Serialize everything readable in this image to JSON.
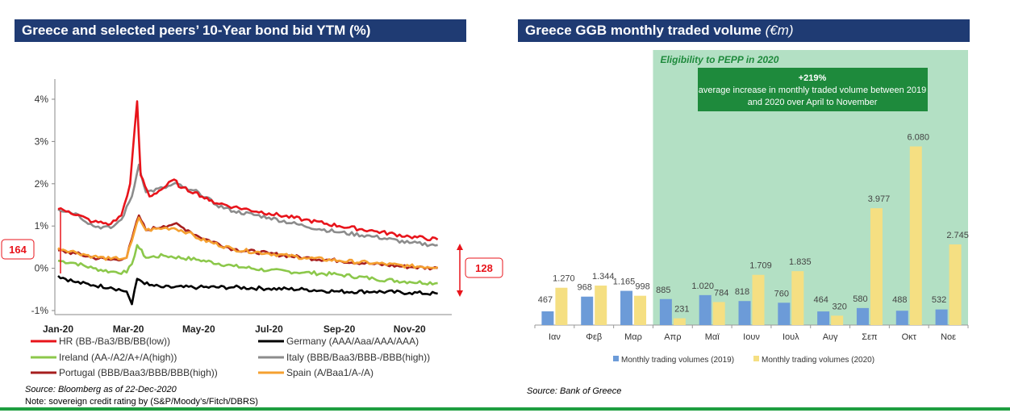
{
  "left": {
    "title": "Greece and selected peers’ 10-Year bond bid YTM (%)",
    "source": "Source: Bloomberg as of 22-Dec-2020",
    "note": "Note: sovereign credit rating by (S&P/Moody’s/Fitch/DBRS)"
  },
  "right": {
    "title_main": "Greece GGB monthly traded volume",
    "title_unit": "(€m)",
    "source": "Source: Bank of Greece"
  },
  "chart_data": [
    {
      "type": "line",
      "title": "Greece and selected peers’ 10-Year bond bid YTM (%)",
      "ylim": [
        -1,
        4
      ],
      "yticks": [
        "4%",
        "3%",
        "2%",
        "1%",
        "0%",
        "-1%"
      ],
      "xticks": [
        "Jan-20",
        "Mar-20",
        "May-20",
        "Jul-20",
        "Sep-20",
        "Nov-20"
      ],
      "grid": false,
      "annotations": {
        "left_spread": "164",
        "right_spread": "128"
      },
      "series": [
        {
          "name": "HR (BB-/Ba3/BB/BB(low))",
          "color": "#e8141b",
          "points": [
            [
              0,
              1.4
            ],
            [
              0.3,
              1.35
            ],
            [
              1,
              1.1
            ],
            [
              1.5,
              1.05
            ],
            [
              1.8,
              1.25
            ],
            [
              2.05,
              2.0
            ],
            [
              2.25,
              3.95
            ],
            [
              2.35,
              2.2
            ],
            [
              2.6,
              1.7
            ],
            [
              3,
              1.9
            ],
            [
              3.3,
              2.1
            ],
            [
              3.5,
              1.9
            ],
            [
              3.9,
              1.8
            ],
            [
              4.3,
              1.6
            ],
            [
              5,
              1.45
            ],
            [
              6,
              1.3
            ],
            [
              7,
              1.15
            ],
            [
              8,
              1.0
            ],
            [
              9,
              0.88
            ],
            [
              10,
              0.75
            ],
            [
              10.8,
              0.68
            ]
          ]
        },
        {
          "name": "Germany (AAA/Aaa/AAA/AAA)",
          "color": "#000000",
          "points": [
            [
              0,
              -0.18
            ],
            [
              0.5,
              -0.33
            ],
            [
              1,
              -0.4
            ],
            [
              1.5,
              -0.45
            ],
            [
              1.95,
              -0.55
            ],
            [
              2.1,
              -0.85
            ],
            [
              2.25,
              -0.25
            ],
            [
              2.6,
              -0.4
            ],
            [
              3,
              -0.45
            ],
            [
              4,
              -0.45
            ],
            [
              5,
              -0.45
            ],
            [
              6,
              -0.48
            ],
            [
              7,
              -0.5
            ],
            [
              8,
              -0.55
            ],
            [
              9,
              -0.55
            ],
            [
              10,
              -0.58
            ],
            [
              10.8,
              -0.6
            ]
          ]
        },
        {
          "name": "Ireland (AA-/A2/A+/A(high))",
          "color": "#8cc84b",
          "points": [
            [
              0,
              0.18
            ],
            [
              0.5,
              0.12
            ],
            [
              1,
              0.0
            ],
            [
              1.5,
              -0.08
            ],
            [
              1.95,
              -0.1
            ],
            [
              2.1,
              0.1
            ],
            [
              2.25,
              0.55
            ],
            [
              2.5,
              0.25
            ],
            [
              3,
              0.3
            ],
            [
              4,
              0.2
            ],
            [
              5,
              0.05
            ],
            [
              6,
              -0.05
            ],
            [
              7,
              -0.1
            ],
            [
              8,
              -0.15
            ],
            [
              9,
              -0.25
            ],
            [
              10,
              -0.32
            ],
            [
              10.8,
              -0.35
            ]
          ]
        },
        {
          "name": "Italy (BBB/Baa3/BBB-/BBB(high))",
          "color": "#8c8c8c",
          "points": [
            [
              0,
              1.4
            ],
            [
              0.5,
              1.3
            ],
            [
              1,
              1.0
            ],
            [
              1.5,
              0.95
            ],
            [
              1.8,
              1.15
            ],
            [
              2.1,
              1.7
            ],
            [
              2.3,
              2.45
            ],
            [
              2.5,
              1.8
            ],
            [
              3,
              1.9
            ],
            [
              3.4,
              2.0
            ],
            [
              3.7,
              1.85
            ],
            [
              4,
              1.8
            ],
            [
              4.5,
              1.5
            ],
            [
              5,
              1.35
            ],
            [
              6,
              1.2
            ],
            [
              7,
              1.0
            ],
            [
              8,
              0.85
            ],
            [
              9,
              0.75
            ],
            [
              10,
              0.6
            ],
            [
              10.8,
              0.55
            ]
          ]
        },
        {
          "name": "Portugal (BBB/Baa3/BBB/BBB(high))",
          "color": "#a61e1e",
          "points": [
            [
              0,
              0.42
            ],
            [
              0.5,
              0.35
            ],
            [
              1,
              0.25
            ],
            [
              1.5,
              0.2
            ],
            [
              1.95,
              0.25
            ],
            [
              2.1,
              0.7
            ],
            [
              2.3,
              1.25
            ],
            [
              2.5,
              0.9
            ],
            [
              3,
              1.0
            ],
            [
              3.3,
              1.05
            ],
            [
              3.7,
              0.9
            ],
            [
              4,
              0.75
            ],
            [
              5,
              0.45
            ],
            [
              6,
              0.35
            ],
            [
              7,
              0.25
            ],
            [
              8,
              0.18
            ],
            [
              9,
              0.1
            ],
            [
              10,
              0.03
            ],
            [
              10.8,
              0.0
            ]
          ]
        },
        {
          "name": "Spain (A/Baa1/A-/A)",
          "color": "#f5a030",
          "points": [
            [
              0,
              0.48
            ],
            [
              0.5,
              0.38
            ],
            [
              1,
              0.28
            ],
            [
              1.5,
              0.22
            ],
            [
              1.95,
              0.25
            ],
            [
              2.1,
              0.65
            ],
            [
              2.3,
              1.2
            ],
            [
              2.5,
              0.9
            ],
            [
              3,
              0.95
            ],
            [
              3.3,
              0.95
            ],
            [
              3.7,
              0.85
            ],
            [
              4,
              0.7
            ],
            [
              5,
              0.45
            ],
            [
              6,
              0.35
            ],
            [
              7,
              0.25
            ],
            [
              8,
              0.18
            ],
            [
              9,
              0.12
            ],
            [
              10,
              0.05
            ],
            [
              10.8,
              0.03
            ]
          ]
        }
      ]
    },
    {
      "type": "bar",
      "title": "Greece GGB monthly traded volume (€m)",
      "categories": [
        "Ιαν",
        "Φεβ",
        "Μαρ",
        "Απρ",
        "Μαϊ",
        "Ιουν",
        "Ιουλ",
        "Αυγ",
        "Σεπ",
        "Οκτ",
        "Νοε"
      ],
      "ylim": [
        0,
        7000
      ],
      "series": [
        {
          "name": "Monthly trading volumes (2019)",
          "color": "#6c9bd8",
          "values": [
            467,
            968,
            1165,
            885,
            1020,
            818,
            760,
            464,
            580,
            488,
            532
          ],
          "labels": [
            "467",
            "968",
            "1.165",
            "885",
            "1.020",
            "818",
            "760",
            "464",
            "580",
            "488",
            "532"
          ]
        },
        {
          "name": "Monthly trading volumes (2020)",
          "color": "#f5df82",
          "values": [
            1270,
            1344,
            998,
            231,
            784,
            1709,
            1835,
            320,
            3977,
            6080,
            2745
          ],
          "labels": [
            "1.270",
            "1.344",
            "998",
            "231",
            "784",
            "1.709",
            "1.835",
            "320",
            "3.977",
            "6.080",
            "2.745"
          ]
        }
      ],
      "shaded_region": {
        "label": "Eligibility to PEPP in 2020",
        "from_category": "Απρ",
        "to_category": "Νοε",
        "color": "#b3e0c4"
      },
      "callout": {
        "value": "+219%",
        "text": "average increase in monthly traded volume between 2019 and 2020 over April to November",
        "color": "#1e8a3c"
      }
    }
  ]
}
